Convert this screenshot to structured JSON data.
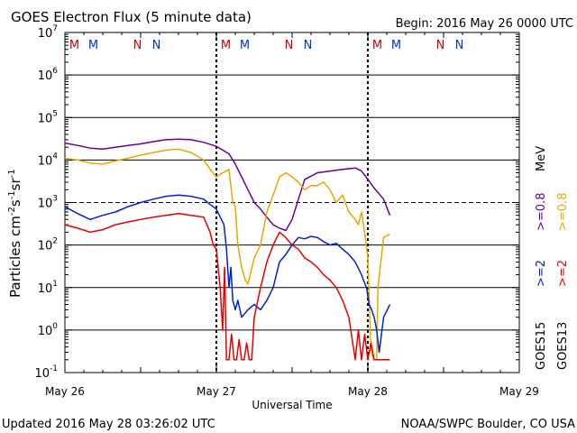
{
  "header": {
    "title": "GOES Electron Flux (5 minute data)",
    "begin": "Begin: 2016 May 26 0000 UTC"
  },
  "footer": {
    "updated": "Updated 2016 May 28 03:26:02 UTC",
    "credit": "NOAA/SWPC Boulder, CO USA"
  },
  "colors": {
    "goes15_08": "#660099",
    "goes13_08": "#e6a800",
    "goes15_2": "#0022cc",
    "goes13_2": "#e60000",
    "marker_M": "#cc0000",
    "marker_N_red": "#cc0000",
    "marker_M_blue": "#0033cc",
    "marker_N_blue": "#0033cc"
  },
  "chart_data": {
    "type": "line",
    "title": "GOES Electron Flux (5 minute data)",
    "xlabel": "Universal Time",
    "ylabel_parts": [
      "Particles cm",
      "-2",
      "s",
      "-1",
      "sr",
      "-1"
    ],
    "yscale": "log",
    "ylim": [
      0.1,
      10000000
    ],
    "xlim_hours": [
      0,
      72
    ],
    "x_ticks": [
      "May 26",
      "May 27",
      "May 28",
      "May 29"
    ],
    "y_ticks": [
      {
        "base": "10",
        "exp": "-1",
        "value": 0.1
      },
      {
        "base": "10",
        "exp": "0",
        "value": 1
      },
      {
        "base": "10",
        "exp": "1",
        "value": 10
      },
      {
        "base": "10",
        "exp": "2",
        "value": 100
      },
      {
        "base": "10",
        "exp": "3",
        "value": 1000
      },
      {
        "base": "10",
        "exp": "4",
        "value": 10000
      },
      {
        "base": "10",
        "exp": "5",
        "value": 100000
      },
      {
        "base": "10",
        "exp": "6",
        "value": 1000000
      },
      {
        "base": "10",
        "exp": "7",
        "value": 10000000
      }
    ],
    "threshold_dashed": 1000,
    "day_boundaries_hours": [
      24,
      48
    ],
    "top_markers": [
      {
        "label": "M",
        "hour": 1.5,
        "color": "#cc0000"
      },
      {
        "label": "M",
        "hour": 4.5,
        "color": "#0033cc"
      },
      {
        "label": "N",
        "hour": 11.5,
        "color": "#cc0000"
      },
      {
        "label": "N",
        "hour": 14.5,
        "color": "#0033cc"
      },
      {
        "label": "M",
        "hour": 25.5,
        "color": "#cc0000"
      },
      {
        "label": "M",
        "hour": 28.5,
        "color": "#0033cc"
      },
      {
        "label": "N",
        "hour": 35.5,
        "color": "#cc0000"
      },
      {
        "label": "N",
        "hour": 38.5,
        "color": "#0033cc"
      },
      {
        "label": "M",
        "hour": 49.5,
        "color": "#cc0000"
      },
      {
        "label": "M",
        "hour": 52.5,
        "color": "#0033cc"
      },
      {
        "label": "N",
        "hour": 59.5,
        "color": "#cc0000"
      },
      {
        "label": "N",
        "hour": 62.5,
        "color": "#0033cc"
      }
    ],
    "legend": {
      "placement": "right",
      "goes15": "GOES15",
      "goes13": "GOES13",
      "ge2": ">=2",
      "ge08": ">=0.8",
      "mev": "MeV"
    },
    "series": [
      {
        "name": "GOES15 >=0.8 MeV",
        "color": "#660099",
        "x": [
          0,
          2,
          4,
          6,
          8,
          10,
          12,
          14,
          16,
          18,
          20,
          22,
          24,
          26,
          27,
          28,
          29,
          30,
          31,
          32,
          33,
          34,
          35,
          36,
          37,
          38,
          40,
          42,
          44,
          46,
          47,
          48,
          49,
          50.5,
          51.5
        ],
        "y": [
          25000,
          22000,
          19000,
          18000,
          20000,
          22000,
          24000,
          27000,
          30000,
          31000,
          30000,
          26000,
          21000,
          14000,
          8000,
          4000,
          2000,
          1000,
          700,
          450,
          300,
          250,
          220,
          400,
          1200,
          3500,
          5000,
          5500,
          6000,
          6500,
          5500,
          3500,
          2200,
          1200,
          500
        ]
      },
      {
        "name": "GOES13 >=0.8 MeV",
        "color": "#e6a800",
        "x": [
          0,
          2,
          4,
          6,
          8,
          10,
          12,
          14,
          16,
          18,
          20,
          22,
          23,
          24,
          25,
          26,
          26.6,
          27,
          27.4,
          28,
          28.6,
          29,
          30,
          31,
          32,
          33,
          34,
          35,
          36,
          37,
          38,
          39,
          40,
          41,
          42,
          43,
          44,
          45,
          46,
          46.5,
          47,
          47.5,
          48,
          48.5,
          49,
          49.4,
          49.6,
          50.5,
          51.5
        ],
        "y": [
          11000,
          10000,
          8500,
          8000,
          9500,
          11000,
          13000,
          15000,
          17000,
          18000,
          15000,
          10000,
          6000,
          4000,
          5000,
          6000,
          1000,
          800,
          100,
          30,
          15,
          12,
          50,
          100,
          600,
          1500,
          4000,
          5000,
          4000,
          3000,
          2000,
          2500,
          2500,
          3000,
          2000,
          1000,
          1500,
          600,
          400,
          300,
          600,
          200,
          50,
          0.3,
          0.2,
          0.2,
          10,
          150,
          180
        ]
      },
      {
        "name": "GOES15 >=2 MeV",
        "color": "#0022cc",
        "x": [
          0,
          2,
          4,
          6,
          8,
          10,
          12,
          14,
          16,
          18,
          20,
          22,
          23,
          24,
          24.8,
          25.2,
          25.6,
          26,
          26.3,
          26.6,
          27,
          27.4,
          28,
          29,
          30,
          31,
          32,
          33,
          34,
          35,
          36,
          37,
          38,
          39,
          40,
          41,
          42,
          43,
          44,
          45,
          46,
          47,
          47.3,
          47.8,
          48.2,
          48.6,
          49,
          49.4,
          49.8,
          50.5,
          51.5
        ],
        "y": [
          800,
          550,
          400,
          500,
          600,
          800,
          1000,
          1200,
          1400,
          1500,
          1400,
          1200,
          900,
          700,
          400,
          300,
          80,
          10,
          30,
          5,
          3,
          5,
          2,
          3,
          4,
          3,
          5,
          10,
          40,
          60,
          100,
          150,
          140,
          160,
          150,
          120,
          100,
          110,
          80,
          60,
          40,
          20,
          15,
          10,
          4,
          3,
          2,
          1,
          0.3,
          2,
          4
        ]
      },
      {
        "name": "GOES13 >=2 MeV",
        "color": "#e60000",
        "x": [
          0,
          2,
          4,
          6,
          8,
          10,
          12,
          14,
          16,
          18,
          20,
          22,
          23,
          23.5,
          24,
          24.6,
          25,
          25.3,
          25.6,
          26,
          26.4,
          26.8,
          27.2,
          27.6,
          28,
          28.4,
          28.8,
          29.2,
          29.6,
          30,
          31,
          32,
          33,
          34,
          35,
          36,
          37,
          38,
          39,
          40,
          41,
          42,
          43,
          44,
          45,
          46,
          46.5,
          47,
          47.5,
          48,
          48.5,
          49,
          49.5,
          50.5,
          51.5
        ],
        "y": [
          300,
          250,
          200,
          230,
          300,
          350,
          400,
          450,
          500,
          550,
          500,
          450,
          200,
          100,
          80,
          10,
          1,
          30,
          0.2,
          0.2,
          0.8,
          0.2,
          0.2,
          0.6,
          0.2,
          0.2,
          0.5,
          0.2,
          0.2,
          2,
          10,
          40,
          100,
          200,
          150,
          100,
          80,
          50,
          40,
          30,
          20,
          15,
          10,
          5,
          2,
          0.2,
          1,
          0.2,
          0.8,
          0.2,
          0.5,
          0.2,
          0.2,
          0.2,
          0.2
        ]
      }
    ]
  }
}
